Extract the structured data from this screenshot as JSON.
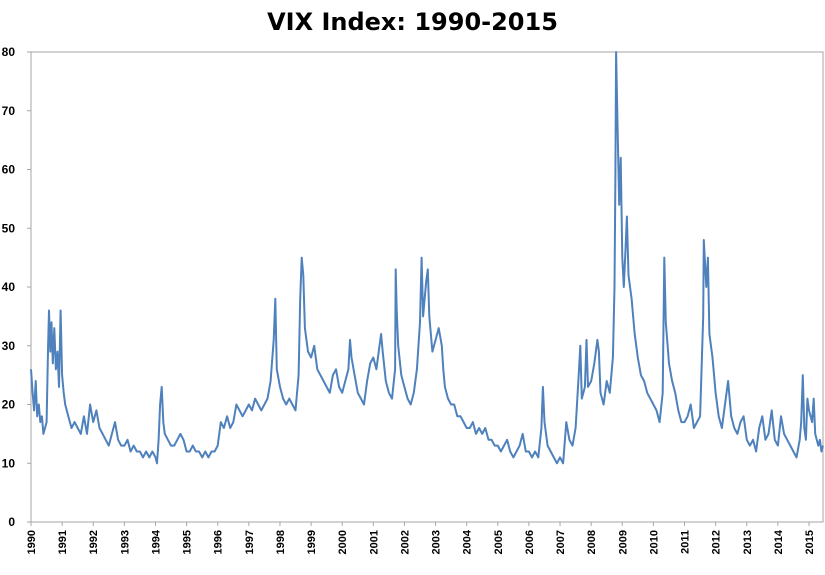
{
  "chart_data": {
    "type": "line",
    "title": "VIX Index: 1990-2015",
    "xlabel": "",
    "ylabel": "",
    "ylim": [
      0,
      80
    ],
    "yticks": [
      "0",
      "10",
      "20",
      "30",
      "40",
      "50",
      "60",
      "70",
      "80"
    ],
    "xticks": [
      "1990",
      "1991",
      "1992",
      "1993",
      "1994",
      "1995",
      "1996",
      "1997",
      "1998",
      "1999",
      "2000",
      "2001",
      "2002",
      "2003",
      "2004",
      "2005",
      "2006",
      "2007",
      "2008",
      "2009",
      "2010",
      "2011",
      "2012",
      "2013",
      "2014",
      "2015"
    ],
    "xlim": [
      1990.0,
      2015.45
    ],
    "grid": false,
    "legend": "none",
    "series": [
      {
        "color": "#4f81bd",
        "points": [
          [
            1990.0,
            26
          ],
          [
            1990.05,
            22
          ],
          [
            1990.1,
            19
          ],
          [
            1990.15,
            24
          ],
          [
            1990.2,
            18
          ],
          [
            1990.25,
            20
          ],
          [
            1990.3,
            17
          ],
          [
            1990.35,
            18
          ],
          [
            1990.4,
            15
          ],
          [
            1990.45,
            16
          ],
          [
            1990.5,
            17
          ],
          [
            1990.55,
            30
          ],
          [
            1990.58,
            36
          ],
          [
            1990.62,
            29
          ],
          [
            1990.66,
            34
          ],
          [
            1990.7,
            27
          ],
          [
            1990.75,
            33
          ],
          [
            1990.8,
            26
          ],
          [
            1990.85,
            29
          ],
          [
            1990.9,
            23
          ],
          [
            1990.95,
            36
          ],
          [
            1991.0,
            25
          ],
          [
            1991.05,
            22
          ],
          [
            1991.1,
            20
          ],
          [
            1991.2,
            18
          ],
          [
            1991.3,
            16
          ],
          [
            1991.4,
            17
          ],
          [
            1991.5,
            16
          ],
          [
            1991.6,
            15
          ],
          [
            1991.7,
            18
          ],
          [
            1991.8,
            15
          ],
          [
            1991.9,
            20
          ],
          [
            1992.0,
            17
          ],
          [
            1992.1,
            19
          ],
          [
            1992.2,
            16
          ],
          [
            1992.3,
            15
          ],
          [
            1992.4,
            14
          ],
          [
            1992.5,
            13
          ],
          [
            1992.6,
            15
          ],
          [
            1992.7,
            17
          ],
          [
            1992.8,
            14
          ],
          [
            1992.9,
            13
          ],
          [
            1993.0,
            13
          ],
          [
            1993.1,
            14
          ],
          [
            1993.2,
            12
          ],
          [
            1993.3,
            13
          ],
          [
            1993.4,
            12
          ],
          [
            1993.5,
            12
          ],
          [
            1993.6,
            11
          ],
          [
            1993.7,
            12
          ],
          [
            1993.8,
            11
          ],
          [
            1993.9,
            12
          ],
          [
            1994.0,
            11
          ],
          [
            1994.05,
            10
          ],
          [
            1994.1,
            14
          ],
          [
            1994.15,
            20
          ],
          [
            1994.2,
            23
          ],
          [
            1994.25,
            17
          ],
          [
            1994.3,
            15
          ],
          [
            1994.4,
            14
          ],
          [
            1994.5,
            13
          ],
          [
            1994.6,
            13
          ],
          [
            1994.7,
            14
          ],
          [
            1994.8,
            15
          ],
          [
            1994.9,
            14
          ],
          [
            1995.0,
            12
          ],
          [
            1995.1,
            12
          ],
          [
            1995.2,
            13
          ],
          [
            1995.3,
            12
          ],
          [
            1995.4,
            12
          ],
          [
            1995.5,
            11
          ],
          [
            1995.6,
            12
          ],
          [
            1995.7,
            11
          ],
          [
            1995.8,
            12
          ],
          [
            1995.9,
            12
          ],
          [
            1996.0,
            13
          ],
          [
            1996.1,
            17
          ],
          [
            1996.2,
            16
          ],
          [
            1996.3,
            18
          ],
          [
            1996.4,
            16
          ],
          [
            1996.5,
            17
          ],
          [
            1996.6,
            20
          ],
          [
            1996.7,
            19
          ],
          [
            1996.8,
            18
          ],
          [
            1996.9,
            19
          ],
          [
            1997.0,
            20
          ],
          [
            1997.1,
            19
          ],
          [
            1997.2,
            21
          ],
          [
            1997.3,
            20
          ],
          [
            1997.4,
            19
          ],
          [
            1997.5,
            20
          ],
          [
            1997.6,
            21
          ],
          [
            1997.7,
            24
          ],
          [
            1997.8,
            31
          ],
          [
            1997.85,
            38
          ],
          [
            1997.9,
            26
          ],
          [
            1998.0,
            23
          ],
          [
            1998.1,
            21
          ],
          [
            1998.2,
            20
          ],
          [
            1998.3,
            21
          ],
          [
            1998.4,
            20
          ],
          [
            1998.5,
            19
          ],
          [
            1998.6,
            25
          ],
          [
            1998.65,
            38
          ],
          [
            1998.7,
            45
          ],
          [
            1998.75,
            42
          ],
          [
            1998.8,
            33
          ],
          [
            1998.9,
            29
          ],
          [
            1999.0,
            28
          ],
          [
            1999.1,
            30
          ],
          [
            1999.2,
            26
          ],
          [
            1999.3,
            25
          ],
          [
            1999.4,
            24
          ],
          [
            1999.5,
            23
          ],
          [
            1999.6,
            22
          ],
          [
            1999.7,
            25
          ],
          [
            1999.8,
            26
          ],
          [
            1999.9,
            23
          ],
          [
            2000.0,
            22
          ],
          [
            2000.1,
            24
          ],
          [
            2000.2,
            26
          ],
          [
            2000.25,
            31
          ],
          [
            2000.3,
            28
          ],
          [
            2000.4,
            25
          ],
          [
            2000.5,
            22
          ],
          [
            2000.6,
            21
          ],
          [
            2000.7,
            20
          ],
          [
            2000.8,
            24
          ],
          [
            2000.9,
            27
          ],
          [
            2001.0,
            28
          ],
          [
            2001.1,
            26
          ],
          [
            2001.2,
            30
          ],
          [
            2001.25,
            32
          ],
          [
            2001.3,
            29
          ],
          [
            2001.4,
            24
          ],
          [
            2001.5,
            22
          ],
          [
            2001.6,
            21
          ],
          [
            2001.7,
            26
          ],
          [
            2001.72,
            43
          ],
          [
            2001.75,
            36
          ],
          [
            2001.8,
            30
          ],
          [
            2001.9,
            25
          ],
          [
            2002.0,
            23
          ],
          [
            2002.1,
            21
          ],
          [
            2002.2,
            20
          ],
          [
            2002.3,
            22
          ],
          [
            2002.4,
            26
          ],
          [
            2002.5,
            34
          ],
          [
            2002.55,
            45
          ],
          [
            2002.6,
            35
          ],
          [
            2002.7,
            41
          ],
          [
            2002.75,
            43
          ],
          [
            2002.8,
            35
          ],
          [
            2002.9,
            29
          ],
          [
            2003.0,
            31
          ],
          [
            2003.1,
            33
          ],
          [
            2003.2,
            30
          ],
          [
            2003.25,
            26
          ],
          [
            2003.3,
            23
          ],
          [
            2003.4,
            21
          ],
          [
            2003.5,
            20
          ],
          [
            2003.6,
            20
          ],
          [
            2003.7,
            18
          ],
          [
            2003.8,
            18
          ],
          [
            2003.9,
            17
          ],
          [
            2004.0,
            16
          ],
          [
            2004.1,
            16
          ],
          [
            2004.2,
            17
          ],
          [
            2004.3,
            15
          ],
          [
            2004.4,
            16
          ],
          [
            2004.5,
            15
          ],
          [
            2004.6,
            16
          ],
          [
            2004.7,
            14
          ],
          [
            2004.8,
            14
          ],
          [
            2004.9,
            13
          ],
          [
            2005.0,
            13
          ],
          [
            2005.1,
            12
          ],
          [
            2005.2,
            13
          ],
          [
            2005.3,
            14
          ],
          [
            2005.4,
            12
          ],
          [
            2005.5,
            11
          ],
          [
            2005.6,
            12
          ],
          [
            2005.7,
            13
          ],
          [
            2005.8,
            15
          ],
          [
            2005.9,
            12
          ],
          [
            2006.0,
            12
          ],
          [
            2006.1,
            11
          ],
          [
            2006.2,
            12
          ],
          [
            2006.3,
            11
          ],
          [
            2006.4,
            16
          ],
          [
            2006.45,
            23
          ],
          [
            2006.5,
            17
          ],
          [
            2006.6,
            13
          ],
          [
            2006.7,
            12
          ],
          [
            2006.8,
            11
          ],
          [
            2006.9,
            10
          ],
          [
            2007.0,
            11
          ],
          [
            2007.1,
            10
          ],
          [
            2007.2,
            17
          ],
          [
            2007.3,
            14
          ],
          [
            2007.4,
            13
          ],
          [
            2007.5,
            16
          ],
          [
            2007.6,
            25
          ],
          [
            2007.65,
            30
          ],
          [
            2007.7,
            21
          ],
          [
            2007.8,
            23
          ],
          [
            2007.85,
            31
          ],
          [
            2007.9,
            23
          ],
          [
            2008.0,
            24
          ],
          [
            2008.1,
            27
          ],
          [
            2008.2,
            31
          ],
          [
            2008.25,
            29
          ],
          [
            2008.3,
            22
          ],
          [
            2008.4,
            20
          ],
          [
            2008.5,
            24
          ],
          [
            2008.6,
            22
          ],
          [
            2008.7,
            28
          ],
          [
            2008.75,
            40
          ],
          [
            2008.78,
            59
          ],
          [
            2008.8,
            80
          ],
          [
            2008.85,
            67
          ],
          [
            2008.9,
            54
          ],
          [
            2008.95,
            62
          ],
          [
            2009.0,
            45
          ],
          [
            2009.05,
            40
          ],
          [
            2009.1,
            46
          ],
          [
            2009.15,
            52
          ],
          [
            2009.2,
            42
          ],
          [
            2009.3,
            38
          ],
          [
            2009.4,
            32
          ],
          [
            2009.5,
            28
          ],
          [
            2009.6,
            25
          ],
          [
            2009.7,
            24
          ],
          [
            2009.8,
            22
          ],
          [
            2009.9,
            21
          ],
          [
            2010.0,
            20
          ],
          [
            2010.1,
            19
          ],
          [
            2010.2,
            17
          ],
          [
            2010.3,
            22
          ],
          [
            2010.35,
            45
          ],
          [
            2010.4,
            34
          ],
          [
            2010.5,
            27
          ],
          [
            2010.6,
            24
          ],
          [
            2010.7,
            22
          ],
          [
            2010.8,
            19
          ],
          [
            2010.9,
            17
          ],
          [
            2011.0,
            17
          ],
          [
            2011.1,
            18
          ],
          [
            2011.2,
            20
          ],
          [
            2011.3,
            16
          ],
          [
            2011.4,
            17
          ],
          [
            2011.5,
            18
          ],
          [
            2011.6,
            35
          ],
          [
            2011.62,
            48
          ],
          [
            2011.7,
            40
          ],
          [
            2011.75,
            45
          ],
          [
            2011.8,
            32
          ],
          [
            2011.9,
            28
          ],
          [
            2012.0,
            22
          ],
          [
            2012.1,
            18
          ],
          [
            2012.2,
            16
          ],
          [
            2012.3,
            20
          ],
          [
            2012.4,
            24
          ],
          [
            2012.5,
            18
          ],
          [
            2012.6,
            16
          ],
          [
            2012.7,
            15
          ],
          [
            2012.8,
            17
          ],
          [
            2012.9,
            18
          ],
          [
            2013.0,
            14
          ],
          [
            2013.1,
            13
          ],
          [
            2013.2,
            14
          ],
          [
            2013.3,
            12
          ],
          [
            2013.4,
            16
          ],
          [
            2013.5,
            18
          ],
          [
            2013.6,
            14
          ],
          [
            2013.7,
            15
          ],
          [
            2013.8,
            19
          ],
          [
            2013.9,
            14
          ],
          [
            2014.0,
            13
          ],
          [
            2014.1,
            18
          ],
          [
            2014.2,
            15
          ],
          [
            2014.3,
            14
          ],
          [
            2014.4,
            13
          ],
          [
            2014.5,
            12
          ],
          [
            2014.6,
            11
          ],
          [
            2014.7,
            14
          ],
          [
            2014.75,
            17
          ],
          [
            2014.8,
            25
          ],
          [
            2014.85,
            16
          ],
          [
            2014.9,
            14
          ],
          [
            2014.95,
            21
          ],
          [
            2015.0,
            19
          ],
          [
            2015.1,
            17
          ],
          [
            2015.15,
            21
          ],
          [
            2015.2,
            15
          ],
          [
            2015.3,
            13
          ],
          [
            2015.35,
            14
          ],
          [
            2015.4,
            12
          ],
          [
            2015.45,
            13
          ]
        ]
      }
    ]
  }
}
